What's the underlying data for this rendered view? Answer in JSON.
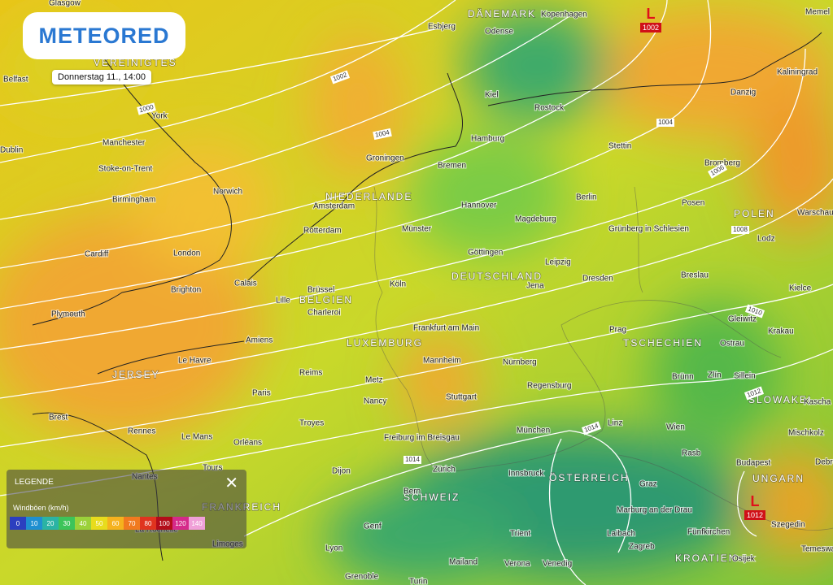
{
  "logo": "METEORED",
  "date": "Donnerstag 11., 14:00",
  "legend": {
    "title": "LEGENDE",
    "subtitle": "Windböen (km/h)",
    "close": "✕",
    "scale": [
      {
        "value": 0,
        "color": "#2b3fbf"
      },
      {
        "value": 10,
        "color": "#1f8fd0"
      },
      {
        "value": 20,
        "color": "#2bb3a4"
      },
      {
        "value": 30,
        "color": "#3cc45a"
      },
      {
        "value": 40,
        "color": "#9bd13a"
      },
      {
        "value": 50,
        "color": "#e8dc1c"
      },
      {
        "value": 60,
        "color": "#f5b21e"
      },
      {
        "value": 70,
        "color": "#f07a1f"
      },
      {
        "value": 80,
        "color": "#e0341f"
      },
      {
        "value": 100,
        "color": "#b30d1a"
      },
      {
        "value": 120,
        "color": "#d52a8a"
      },
      {
        "value": 140,
        "color": "#f0a0d8"
      }
    ]
  },
  "pressure_centers": [
    {
      "symbol": "L",
      "value": 1002
    },
    {
      "symbol": "L",
      "value": 1012
    }
  ],
  "isobar_labels": [
    1002,
    1000,
    1004,
    1004,
    1006,
    1008,
    1010,
    1012,
    1014,
    1014
  ],
  "countries": [
    "DÄNEMARK",
    "VEREINIGTES",
    "NIEDERLANDE",
    "POLEN",
    "DEUTSCHLAND",
    "BELGIEN",
    "LUXEMBURG",
    "TSCHECHIEN",
    "JERSEY",
    "SLOWAKEI",
    "UNGARN",
    "ÖSTERREICH",
    "SCHWEIZ",
    "FRANKREICH",
    "KROATIEN"
  ],
  "cities": [
    "Glasgow",
    "Kopenhagen",
    "Memel",
    "Esbjerg",
    "Odense",
    "Belfast",
    "Kiel",
    "Rostock",
    "Danzig",
    "Kaliningrad",
    "York",
    "Dublin",
    "Manchester",
    "Hamburg",
    "Stettin",
    "Groningen",
    "Bremen",
    "Stoke-on-Trent",
    "Bromberg",
    "Norwich",
    "Amsterdam",
    "Birmingham",
    "Berlin",
    "Hannover",
    "Posen",
    "Warschau",
    "Magdeburg",
    "Münster",
    "Rotterdam",
    "Grünberg in Schlesien",
    "Lodz",
    "Cardiff",
    "London",
    "Göttingen",
    "Leipzig",
    "Breslau",
    "Calais",
    "Köln",
    "Dresden",
    "Jena",
    "Brighton",
    "Brüssel",
    "Lille",
    "Charleroi",
    "Kielce",
    "Plymouth",
    "Gleiwitz",
    "Prag",
    "Krakau",
    "Frankfurt am Main",
    "Amiens",
    "Ostrau",
    "Le Havre",
    "Mannheim",
    "Nürnberg",
    "Reims",
    "Brünn",
    "Zlín",
    "Sillein",
    "Metz",
    "Regensburg",
    "Paris",
    "Stuttgart",
    "Nancy",
    "Kascha",
    "Brest",
    "Rennes",
    "Troyes",
    "Linz",
    "Wien",
    "München",
    "Mischkolz",
    "Le Mans",
    "Orléans",
    "Freiburg im Breisgau",
    "Rasb",
    "Debre",
    "Budapest",
    "Nantes",
    "Tours",
    "Zürich",
    "Dijon",
    "Innsbruck",
    "Graz",
    "Bern",
    "Marburg an der Drau",
    "Szegedin",
    "Genf",
    "Trient",
    "Laibach",
    "Fünfkirchen",
    "La Rochelle",
    "Temeswar",
    "Limoges",
    "Lyon",
    "Zagreb",
    "Osijek",
    "Mailand",
    "Verona",
    "Venedig",
    "Grenoble",
    "Turin"
  ]
}
